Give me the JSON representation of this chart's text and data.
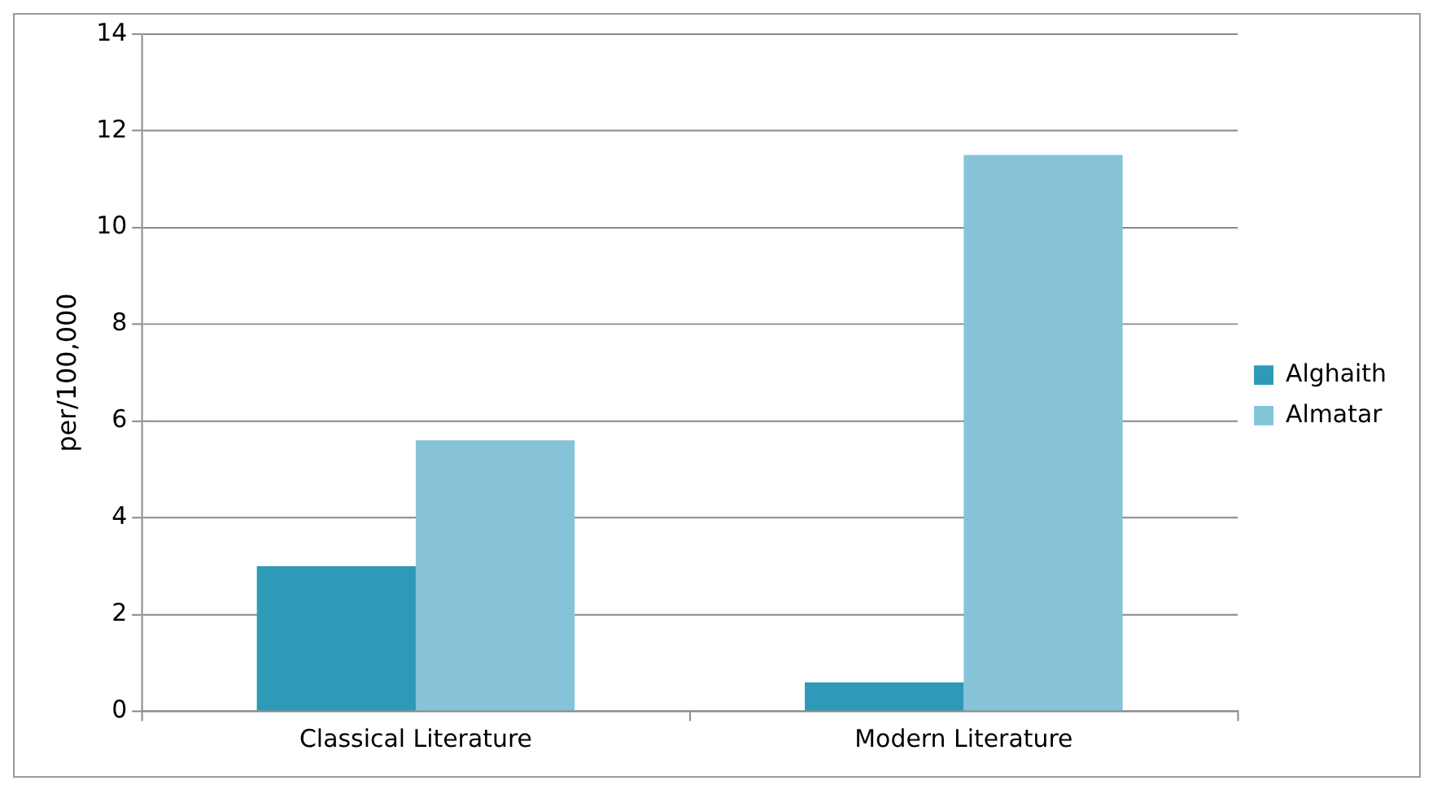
{
  "chart_data": {
    "type": "bar",
    "ylabel": "per/100,000",
    "categories": [
      "Classical Literature",
      "Modern Literature"
    ],
    "series": [
      {
        "name": "Alghaith",
        "color": "#2e9ab8",
        "values": [
          3.0,
          0.6
        ]
      },
      {
        "name": "Almatar",
        "color": "#86c3d8",
        "values": [
          5.6,
          11.5
        ]
      }
    ],
    "ylim": [
      0,
      14
    ],
    "yticks": [
      0,
      2,
      4,
      6,
      8,
      10,
      12,
      14
    ],
    "grid": "y",
    "legend": "right"
  }
}
